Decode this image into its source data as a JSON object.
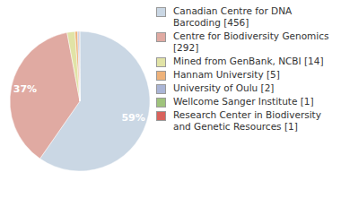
{
  "chart_data": {
    "type": "pie",
    "categories": [
      "Canadian Centre for DNA Barcoding [456]",
      "Centre for Biodiversity Genomics [292]",
      "Mined from GenBank, NCBI [14]",
      "Hannam University [5]",
      "University of Oulu [2]",
      "Wellcome Sanger Institute [1]",
      "Research Center in Biodiversity and Genetic Resources [1]"
    ],
    "values": [
      59,
      37,
      1.8,
      0.6,
      0.3,
      0.1,
      0.1
    ],
    "value_labels": [
      "59%",
      "37%",
      null,
      null,
      null,
      null,
      null
    ],
    "colors": [
      "#cad7e4",
      "#e0aaa2",
      "#e1e3a6",
      "#eeb27a",
      "#aab5d6",
      "#9fc37c",
      "#d9625c"
    ],
    "data_labels": true
  }
}
